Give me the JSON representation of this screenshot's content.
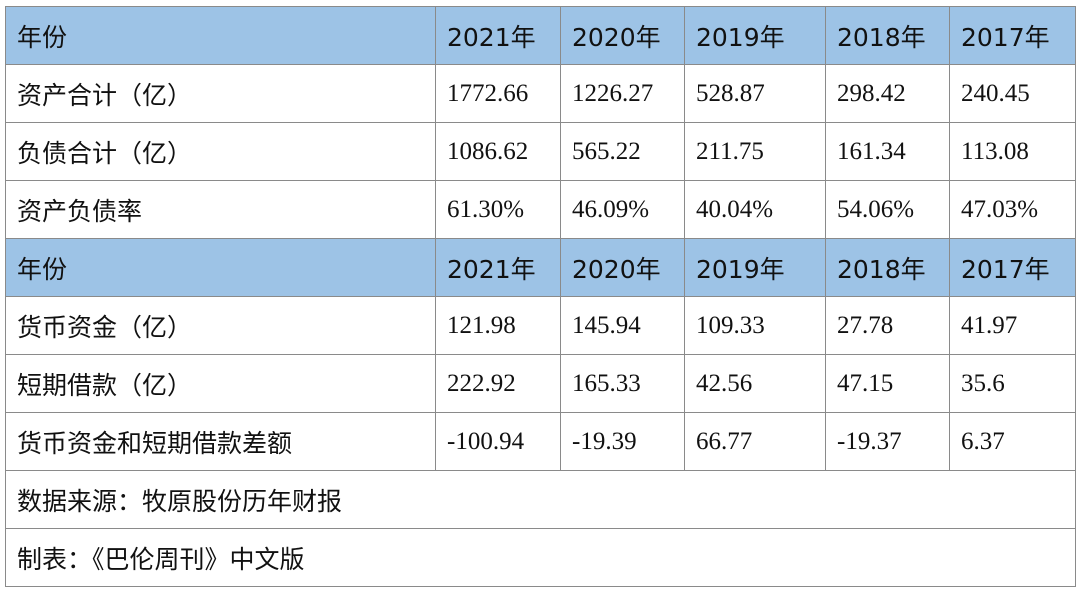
{
  "section1": {
    "header": {
      "label": "年份",
      "years": [
        "2021年",
        "2020年",
        "2019年",
        "2018年",
        "2017年"
      ]
    },
    "rows": [
      {
        "label": "资产合计（亿）",
        "values": [
          "1772.66",
          "1226.27",
          "528.87",
          "298.42",
          "240.45"
        ]
      },
      {
        "label": "负债合计（亿）",
        "values": [
          "1086.62",
          "565.22",
          "211.75",
          "161.34",
          "113.08"
        ]
      },
      {
        "label": "资产负债率",
        "values": [
          "61.30%",
          "46.09%",
          "40.04%",
          "54.06%",
          "47.03%"
        ]
      }
    ]
  },
  "section2": {
    "header": {
      "label": "年份",
      "years": [
        "2021年",
        "2020年",
        "2019年",
        "2018年",
        "2017年"
      ]
    },
    "rows": [
      {
        "label": "货币资金（亿）",
        "values": [
          "121.98",
          "145.94",
          "109.33",
          "27.78",
          "41.97"
        ]
      },
      {
        "label": "短期借款（亿）",
        "values": [
          "222.92",
          "165.33",
          "42.56",
          "47.15",
          "35.6"
        ]
      },
      {
        "label": "货币资金和短期借款差额",
        "values": [
          "-100.94",
          "-19.39",
          "66.77",
          "-19.37",
          "6.37"
        ]
      }
    ]
  },
  "footer": {
    "source": "数据来源：牧原股份历年财报",
    "credit": "制表：《巴伦周刊》中文版"
  },
  "colors": {
    "header_bg": "#9dc3e6",
    "border": "#8a8a8a"
  }
}
